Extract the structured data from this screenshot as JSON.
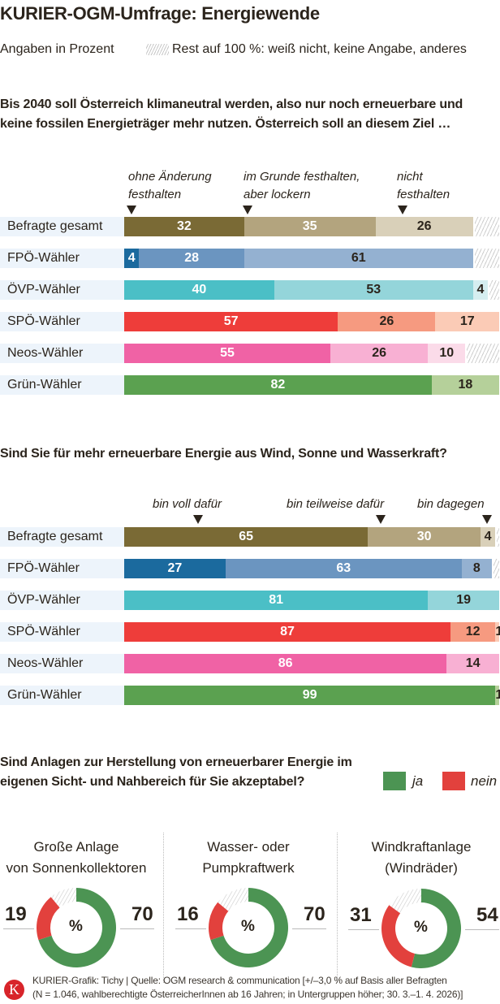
{
  "header": {
    "title": "KURIER-OGM-Umfrage: Energiewende",
    "subtitle": "Angaben in Prozent",
    "rest_note": "Rest auf 100 %: weiß nicht, keine Angabe, anderes"
  },
  "chart_data": [
    {
      "type": "bar",
      "stacked": true,
      "orientation": "horizontal",
      "title": "Bis 2040 soll Österreich klimaneutral werden, also nur noch erneuerbare und keine fossilen Energieträger mehr nutzen. Österreich soll an diesem Ziel …",
      "series_names": [
        "ohne Änderung festhalten",
        "im Grunde festhalten, aber lockern",
        "nicht festhalten"
      ],
      "categories": [
        "Befragte gesamt",
        "FPÖ-Wähler",
        "ÖVP-Wähler",
        "SPÖ-Wähler",
        "Neos-Wähler",
        "Grün-Wähler"
      ],
      "values": [
        [
          32,
          35,
          26
        ],
        [
          4,
          28,
          61
        ],
        [
          40,
          53,
          4
        ],
        [
          57,
          26,
          17
        ],
        [
          55,
          26,
          10
        ],
        [
          82,
          18,
          null
        ]
      ],
      "colors": [
        [
          "#7a6a35",
          "#b3a47e",
          "#d9d0b9"
        ],
        [
          "#1b6a9e",
          "#6b95c0",
          "#94b1d1"
        ],
        [
          "#4bbfc6",
          "#94d5da",
          "#d5eef0"
        ],
        [
          "#ee3d3a",
          "#f69a80",
          "#fbcbb6"
        ],
        [
          "#f062a5",
          "#f8b0d3",
          "#fbdbe9"
        ],
        [
          "#5ba150",
          "#b5d09a",
          "#e2ecd5"
        ]
      ],
      "xlim": [
        0,
        100
      ]
    },
    {
      "type": "bar",
      "stacked": true,
      "orientation": "horizontal",
      "title": "Sind Sie für mehr erneuerbare Energie aus Wind, Sonne und Wasserkraft?",
      "series_names": [
        "bin voll dafür",
        "bin teilweise dafür",
        "bin dagegen"
      ],
      "categories": [
        "Befragte gesamt",
        "FPÖ-Wähler",
        "ÖVP-Wähler",
        "SPÖ-Wähler",
        "Neos-Wähler",
        "Grün-Wähler"
      ],
      "values": [
        [
          65,
          30,
          4
        ],
        [
          27,
          63,
          8
        ],
        [
          81,
          19,
          null
        ],
        [
          87,
          12,
          1
        ],
        [
          86,
          14,
          null
        ],
        [
          99,
          1,
          null
        ]
      ],
      "colors": [
        [
          "#7a6a35",
          "#b3a47e",
          "#d9d0b9"
        ],
        [
          "#1b6a9e",
          "#6b95c0",
          "#94b1d1"
        ],
        [
          "#4bbfc6",
          "#94d5da",
          "#d5eef0"
        ],
        [
          "#ee3d3a",
          "#f69a80",
          "#fbcbb6"
        ],
        [
          "#f062a5",
          "#f8b0d3",
          "#fbdbe9"
        ],
        [
          "#5ba150",
          "#b5d09a",
          "#e2ecd5"
        ]
      ],
      "xlim": [
        0,
        100
      ]
    },
    {
      "type": "pie",
      "donut": true,
      "title": "Sind Anlagen zur Herstellung von erneuerbarer Energie im eigenen Sicht- und Nahbereich für Sie akzeptabel?",
      "legend": [
        {
          "name": "ja",
          "color": "#4c9453"
        },
        {
          "name": "nein",
          "color": "#e2413d"
        }
      ],
      "center_label": "%",
      "charts": [
        {
          "label": "Große Anlage von Sonnenkollektoren",
          "label_lines": [
            "Große Anlage",
            "von Sonnenkollektoren"
          ],
          "ja": 70,
          "nein": 19
        },
        {
          "label": "Wasser- oder Pumpkraftwerk",
          "label_lines": [
            "Wasser- oder",
            "Pumpkraftwerk"
          ],
          "ja": 70,
          "nein": 16
        },
        {
          "label": "Windkraftanlage (Windräder)",
          "label_lines": [
            "Windkraftanlage",
            "(Windräder)"
          ],
          "ja": 54,
          "nein": 31
        }
      ]
    }
  ],
  "footer": {
    "logo": "K",
    "line1": "KURIER-Grafik: Tichy | Quelle: OGM research & communication [+/–3,0 % auf Basis aller Befragten",
    "line2": "(N = 1.046, wahlberechtigte ÖsterreicherInnen ab 16 Jahren; in Untergruppen höher; 30. 3.–1. 4. 2026)]"
  }
}
